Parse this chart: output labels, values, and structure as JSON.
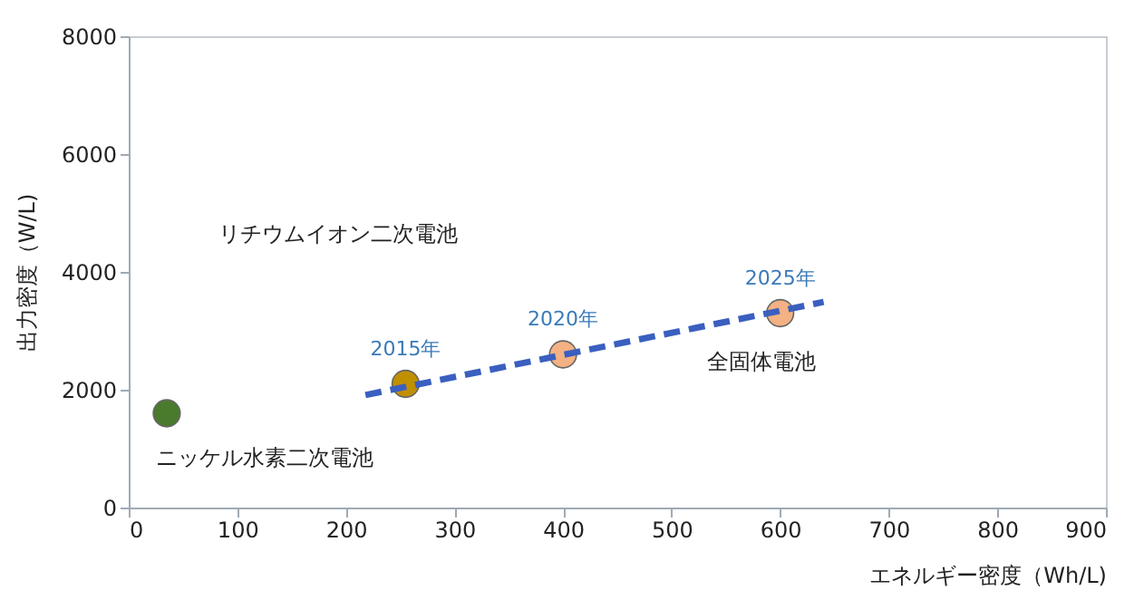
{
  "chart_data": {
    "type": "scatter",
    "xlabel": "エネルギー密度（Wh/L)",
    "ylabel": "出力密度（W/L)",
    "xlim": [
      0,
      900
    ],
    "xticks": [
      0,
      100,
      200,
      300,
      400,
      500,
      600,
      700,
      800,
      900
    ],
    "ylim": [
      0,
      8000
    ],
    "yticks": [
      0,
      2000,
      4000,
      6000,
      8000
    ],
    "grid": false,
    "series": [
      {
        "marker": "circle",
        "x": [
          35,
          255,
          400,
          600
        ],
        "values": [
          1600,
          2100,
          2600,
          3300
        ],
        "colors": [
          "#4a7a2c",
          "#c09000",
          "#f4b183",
          "#f4b183"
        ]
      },
      {
        "type": "line",
        "marker": "none",
        "line_style": "dashed",
        "color": "#3a5fbf",
        "x": [
          218,
          640
        ],
        "values": [
          1910,
          3490
        ]
      }
    ],
    "annotations": [
      "ニッケル水素二次電池",
      "リチウムイオン二次電池",
      "全固体電池",
      {
        "text": "2015年",
        "x": 255,
        "y": 2100
      },
      {
        "text": "2020年",
        "x": 400,
        "y": 2600
      },
      {
        "text": "2025年",
        "x": 600,
        "y": 3300
      }
    ]
  }
}
